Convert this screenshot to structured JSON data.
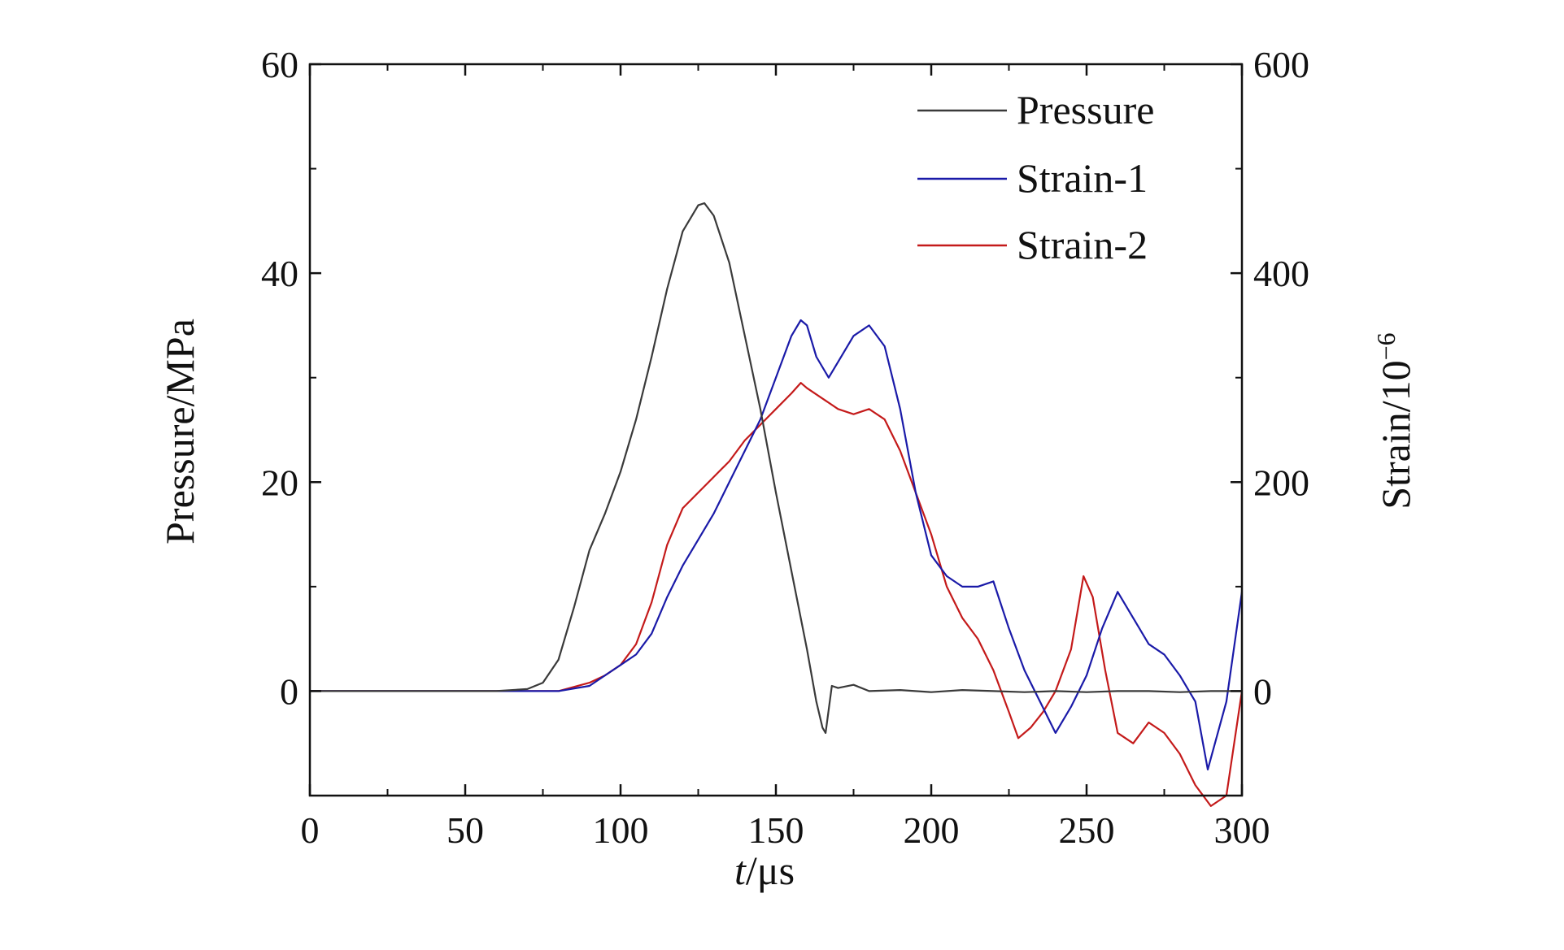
{
  "chart_data": {
    "type": "line",
    "xlabel": "t/μs",
    "xlabel_italic_part": "t",
    "xlabel_rest": "/μs",
    "ylabel_left": "Pressure/MPa",
    "ylabel_right_base": "Strain/10",
    "ylabel_right_exp": "−6",
    "xlim": [
      0,
      300
    ],
    "ylim_left": [
      -10,
      60
    ],
    "ylim_right": [
      -100,
      600
    ],
    "x_ticks": [
      "0",
      "50",
      "100",
      "150",
      "200",
      "250",
      "300"
    ],
    "y_left_ticks": [
      "0",
      "20",
      "40",
      "60"
    ],
    "y_right_ticks": [
      "0",
      "200",
      "400",
      "600"
    ],
    "grid": false,
    "legend_position": "top-right",
    "colors": {
      "Pressure": "#3a3a3a",
      "Strain-1": "#1a1aa8",
      "Strain-2": "#c41a1a"
    },
    "series": [
      {
        "name": "Pressure",
        "axis": "left",
        "x": [
          0,
          20,
          40,
          60,
          70,
          75,
          80,
          85,
          90,
          95,
          100,
          105,
          110,
          115,
          120,
          125,
          127,
          130,
          135,
          140,
          145,
          150,
          155,
          160,
          163,
          165,
          166,
          168,
          170,
          175,
          180,
          190,
          200,
          210,
          220,
          230,
          240,
          250,
          260,
          270,
          280,
          290,
          300
        ],
        "y": [
          0,
          0,
          0,
          0,
          0.2,
          0.8,
          3,
          8,
          13.5,
          17,
          21,
          26,
          32,
          38.5,
          44,
          46.5,
          46.7,
          45.5,
          41,
          34,
          27,
          19,
          11.5,
          4,
          -1,
          -3.5,
          -4,
          0.5,
          0.3,
          0.6,
          0,
          0.1,
          -0.1,
          0.1,
          0,
          -0.1,
          0,
          -0.1,
          0,
          0,
          -0.1,
          0,
          0
        ]
      },
      {
        "name": "Strain-1",
        "axis": "right",
        "x": [
          0,
          20,
          40,
          60,
          80,
          90,
          95,
          100,
          105,
          110,
          115,
          120,
          125,
          130,
          135,
          140,
          145,
          150,
          155,
          158,
          160,
          163,
          167,
          170,
          175,
          180,
          185,
          190,
          195,
          200,
          205,
          210,
          215,
          220,
          225,
          230,
          235,
          240,
          245,
          250,
          255,
          260,
          265,
          270,
          275,
          280,
          285,
          289,
          295,
          300
        ],
        "y": [
          0,
          0,
          0,
          0,
          0,
          5,
          15,
          25,
          35,
          55,
          90,
          120,
          145,
          170,
          200,
          230,
          260,
          300,
          340,
          355,
          350,
          320,
          300,
          315,
          340,
          350,
          330,
          270,
          190,
          130,
          110,
          100,
          100,
          105,
          60,
          20,
          -10,
          -40,
          -15,
          15,
          60,
          95,
          70,
          45,
          35,
          15,
          -10,
          -75,
          -10,
          95
        ]
      },
      {
        "name": "Strain-2",
        "axis": "right",
        "x": [
          0,
          20,
          40,
          60,
          80,
          90,
          95,
          100,
          105,
          110,
          115,
          120,
          125,
          130,
          135,
          140,
          145,
          150,
          155,
          158,
          160,
          165,
          170,
          175,
          180,
          185,
          190,
          195,
          200,
          205,
          210,
          215,
          220,
          225,
          228,
          232,
          236,
          240,
          245,
          249,
          252,
          256,
          260,
          265,
          270,
          275,
          280,
          285,
          290,
          295,
          300
        ],
        "y": [
          0,
          0,
          0,
          0,
          0,
          8,
          15,
          25,
          45,
          85,
          140,
          175,
          190,
          205,
          220,
          240,
          255,
          270,
          285,
          295,
          290,
          280,
          270,
          265,
          270,
          260,
          230,
          190,
          150,
          100,
          70,
          50,
          20,
          -20,
          -45,
          -35,
          -20,
          0,
          40,
          110,
          90,
          20,
          -40,
          -50,
          -30,
          -40,
          -60,
          -90,
          -110,
          -100,
          0
        ]
      }
    ]
  }
}
